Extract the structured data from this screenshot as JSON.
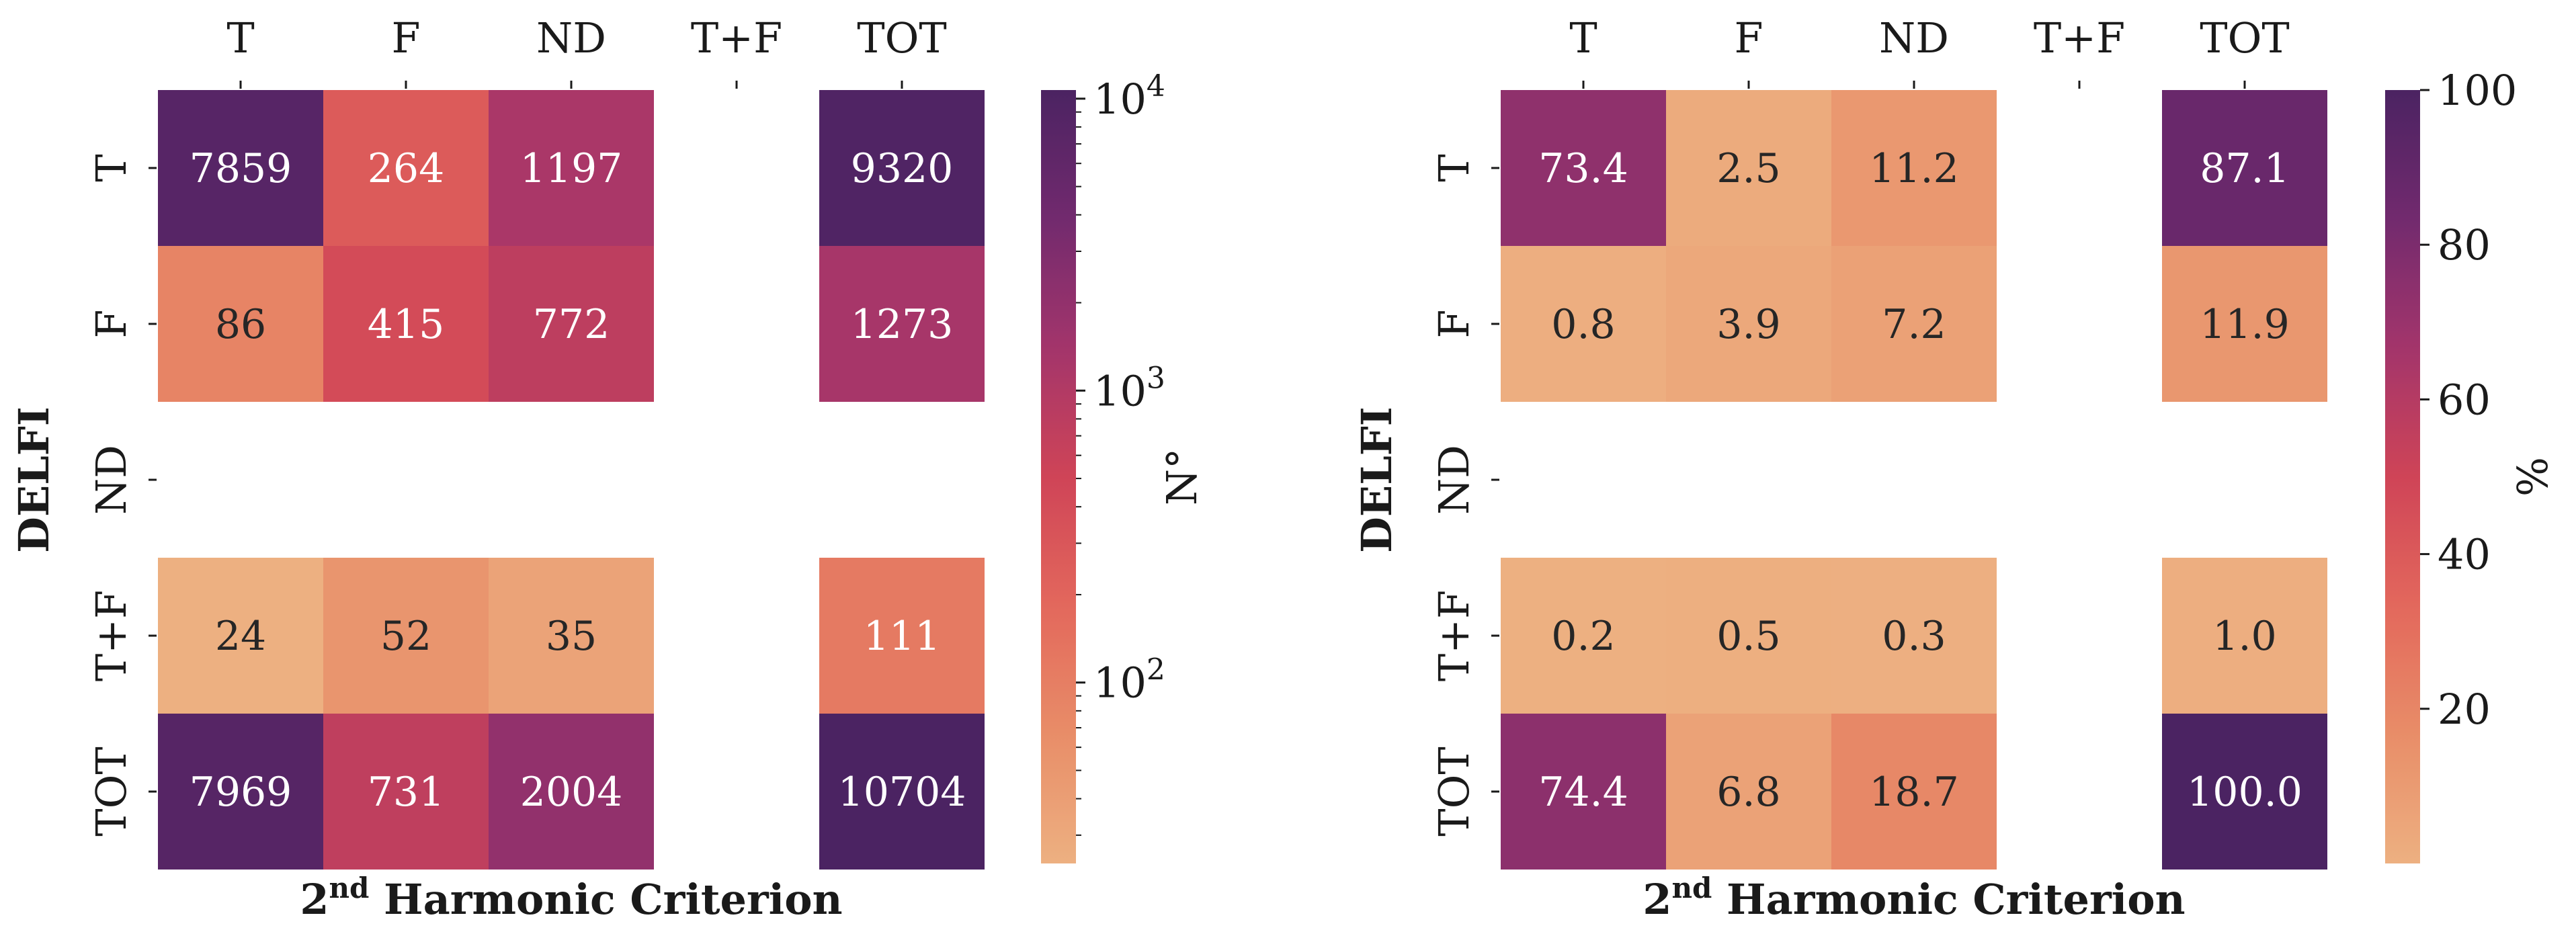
{
  "chart_data": [
    {
      "type": "heatmap",
      "title": "",
      "row_categories": [
        "T",
        "F",
        "ND",
        "T+F",
        "TOT"
      ],
      "col_categories": [
        "T",
        "F",
        "ND",
        "T+F",
        "TOT"
      ],
      "ylabel": "DELFI",
      "xlabel": {
        "base": "2",
        "sup": "nd",
        "rest": " Harmonic Criterion"
      },
      "values": [
        [
          7859,
          264,
          1197,
          null,
          9320
        ],
        [
          86,
          415,
          772,
          null,
          1273
        ],
        [
          null,
          null,
          null,
          null,
          null
        ],
        [
          24,
          52,
          35,
          null,
          111
        ],
        [
          7969,
          731,
          2004,
          null,
          10704
        ]
      ],
      "value_labels": [
        [
          "7859",
          "264",
          "1197",
          "",
          "9320"
        ],
        [
          "86",
          "415",
          "772",
          "",
          "1273"
        ],
        [
          "",
          "",
          "",
          "",
          ""
        ],
        [
          "24",
          "52",
          "35",
          "",
          "111"
        ],
        [
          "7969",
          "731",
          "2004",
          "",
          "10704"
        ]
      ],
      "colorbar": {
        "scale": "log",
        "range": [
          24,
          10704
        ],
        "label": "N°",
        "ticks": [
          {
            "value": 100,
            "base": "10",
            "exp": "2"
          },
          {
            "value": 1000,
            "base": "10",
            "exp": "3"
          },
          {
            "value": 10000,
            "base": "10",
            "exp": "4"
          }
        ]
      },
      "colormap": "flare"
    },
    {
      "type": "heatmap",
      "title": "",
      "row_categories": [
        "T",
        "F",
        "ND",
        "T+F",
        "TOT"
      ],
      "col_categories": [
        "T",
        "F",
        "ND",
        "T+F",
        "TOT"
      ],
      "ylabel": "DELFI",
      "xlabel": {
        "base": "2",
        "sup": "nd",
        "rest": " Harmonic Criterion"
      },
      "values": [
        [
          73.4,
          2.5,
          11.2,
          null,
          87.1
        ],
        [
          0.8,
          3.9,
          7.2,
          null,
          11.9
        ],
        [
          null,
          null,
          null,
          null,
          null
        ],
        [
          0.2,
          0.5,
          0.3,
          null,
          1.0
        ],
        [
          74.4,
          6.8,
          18.7,
          null,
          100.0
        ]
      ],
      "value_labels": [
        [
          "73.4",
          "2.5",
          "11.2",
          "",
          "87.1"
        ],
        [
          "0.8",
          "3.9",
          "7.2",
          "",
          "11.9"
        ],
        [
          "",
          "",
          "",
          "",
          ""
        ],
        [
          "0.2",
          "0.5",
          "0.3",
          "",
          "1.0"
        ],
        [
          "74.4",
          "6.8",
          "18.7",
          "",
          "100.0"
        ]
      ],
      "colorbar": {
        "scale": "linear",
        "range": [
          0,
          100
        ],
        "label": "%",
        "ticks": [
          {
            "value": 20,
            "text": "20"
          },
          {
            "value": 40,
            "text": "40"
          },
          {
            "value": 60,
            "text": "60"
          },
          {
            "value": 80,
            "text": "80"
          },
          {
            "value": 100,
            "text": "100"
          }
        ]
      },
      "colormap": "flare"
    }
  ],
  "colors": {
    "flare_stops": [
      "#edb081",
      "#e88d68",
      "#e3685c",
      "#cf4457",
      "#a3356b",
      "#722a6e",
      "#4b2362"
    ],
    "tick_color": "#1a1a1a"
  }
}
